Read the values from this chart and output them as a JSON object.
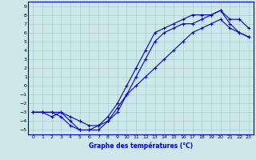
{
  "xlabel": "Graphe des températures (°C)",
  "xlim": [
    -0.5,
    23.5
  ],
  "ylim": [
    -5.5,
    9.5
  ],
  "xticks": [
    0,
    1,
    2,
    3,
    4,
    5,
    6,
    7,
    8,
    9,
    10,
    11,
    12,
    13,
    14,
    15,
    16,
    17,
    18,
    19,
    20,
    21,
    22,
    23
  ],
  "yticks": [
    -5,
    -4,
    -3,
    -2,
    -1,
    0,
    1,
    2,
    3,
    4,
    5,
    6,
    7,
    8,
    9
  ],
  "background_color": "#cce8ea",
  "grid_color": "#aacccc",
  "line_color": "#0000cc",
  "curve1_x": [
    0,
    1,
    2,
    3,
    4,
    5,
    6,
    7,
    8,
    9,
    10,
    11,
    12,
    13,
    14,
    15,
    16,
    17,
    18,
    19,
    20,
    21,
    22,
    23
  ],
  "curve1_y": [
    -3,
    -3,
    -3,
    -3.5,
    -4.5,
    -5,
    -5,
    -5,
    -4,
    -3,
    -1,
    1,
    3,
    5,
    6,
    6.5,
    7,
    7,
    7.5,
    8,
    8.5,
    7.5,
    7.5,
    6.5
  ],
  "curve2_x": [
    0,
    1,
    2,
    3,
    4,
    5,
    6,
    7,
    8,
    9,
    10,
    11,
    12,
    13,
    14,
    15,
    16,
    17,
    18,
    19,
    20,
    21,
    22,
    23
  ],
  "curve2_y": [
    -3,
    -3,
    -3.5,
    -3,
    -4,
    -5,
    -5,
    -4.5,
    -3.5,
    -2,
    0,
    2,
    4,
    6,
    6.5,
    7,
    7.5,
    8,
    8,
    8,
    8.5,
    7,
    6,
    5.5
  ],
  "curve3_x": [
    0,
    1,
    2,
    3,
    4,
    5,
    6,
    7,
    8,
    9,
    10,
    11,
    12,
    13,
    14,
    15,
    16,
    17,
    18,
    19,
    20,
    21,
    22,
    23
  ],
  "curve3_y": [
    -3,
    -3,
    -3,
    -3,
    -3.5,
    -4,
    -4.5,
    -4.5,
    -4,
    -2.5,
    -1,
    0,
    1,
    2,
    3,
    4,
    5,
    6,
    6.5,
    7,
    7.5,
    6.5,
    6,
    5.5
  ]
}
